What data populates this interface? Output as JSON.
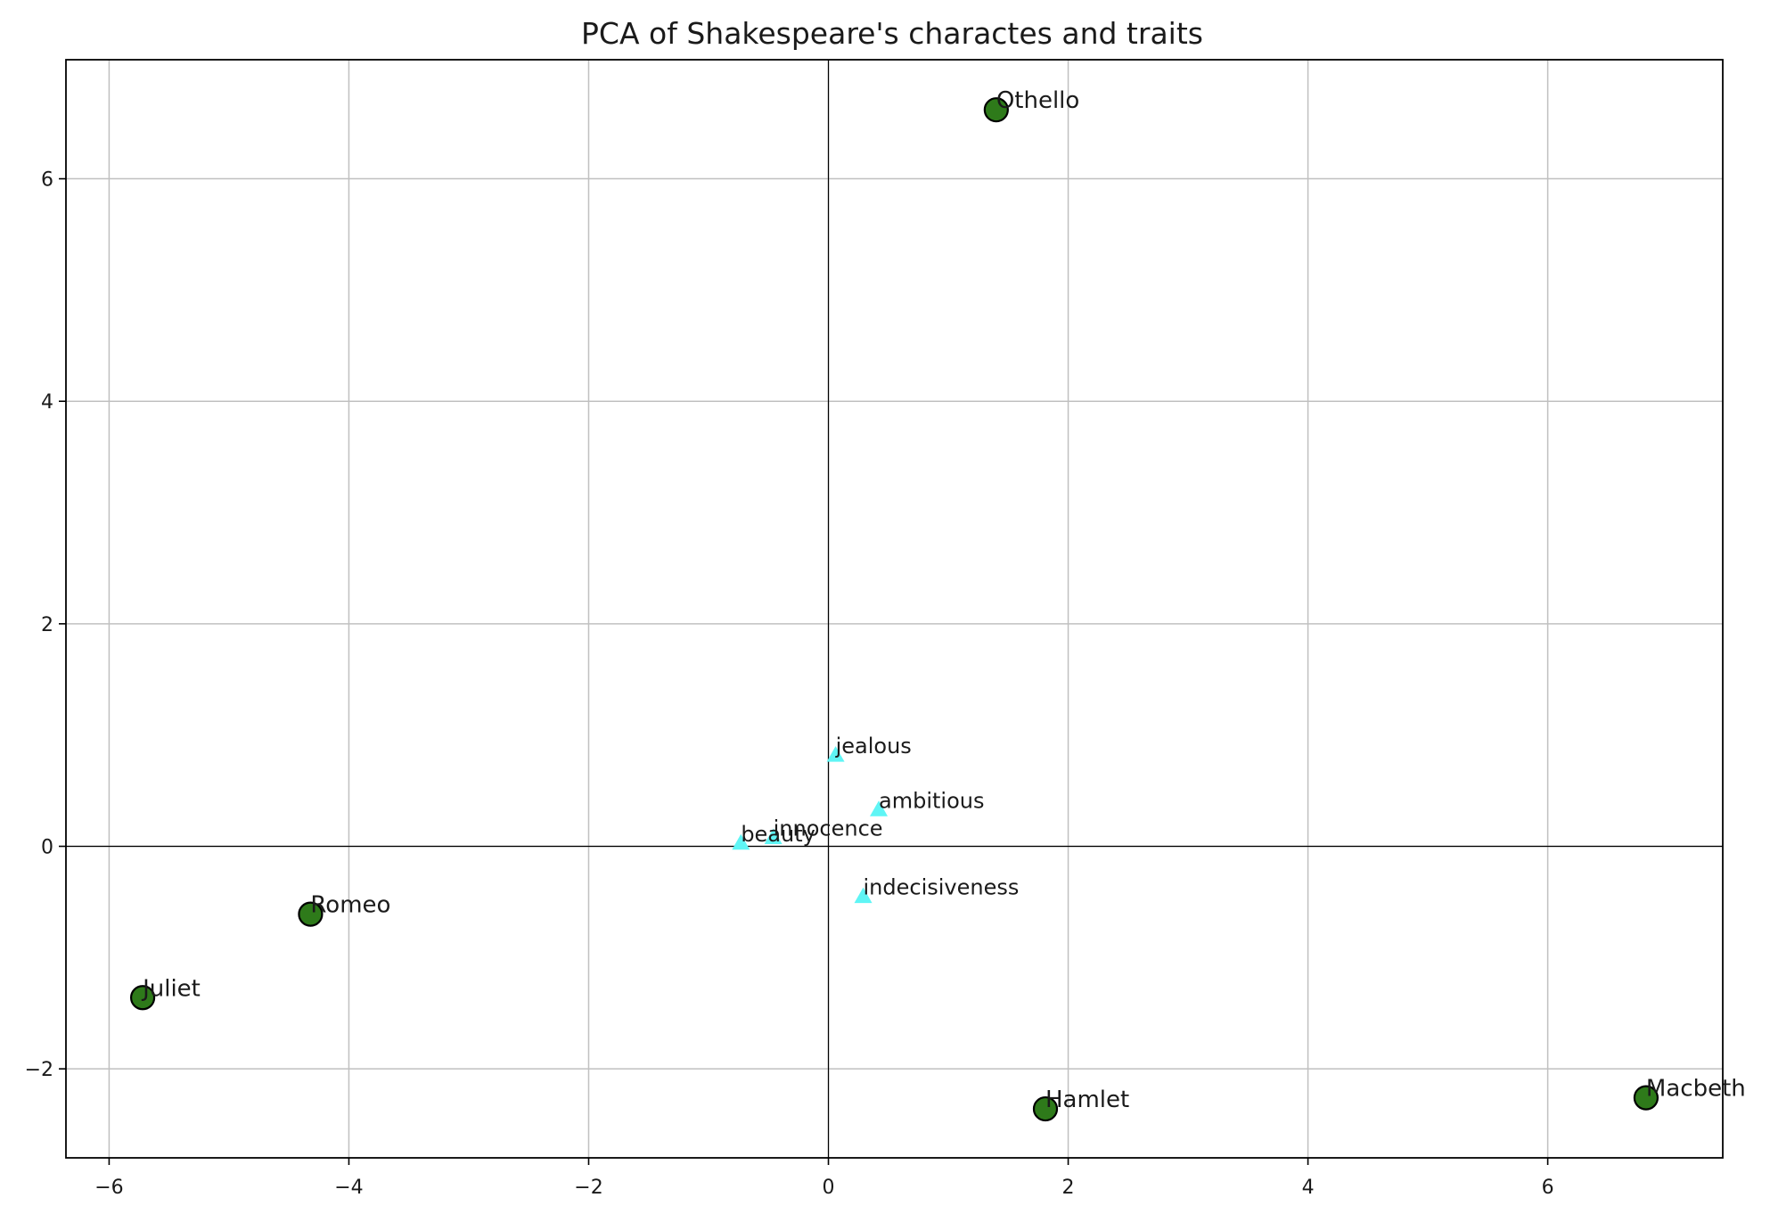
{
  "chart_data": {
    "type": "scatter",
    "title": "PCA of Shakespeare's charactes and traits",
    "xlabel": "",
    "ylabel": "",
    "xlim": [
      -6.36,
      7.46
    ],
    "ylim": [
      -2.8,
      7.07
    ],
    "grid": true,
    "zero_lines": true,
    "x_ticks": [
      -6,
      -4,
      -2,
      0,
      2,
      4,
      6
    ],
    "y_ticks": [
      -2,
      0,
      2,
      4,
      6
    ],
    "x_tick_labels": [
      "−6",
      "−4",
      "−2",
      "0",
      "2",
      "4",
      "6"
    ],
    "y_tick_labels": [
      "−2",
      "0",
      "2",
      "4",
      "6"
    ],
    "characters": {
      "marker": "circle",
      "color": "#2e7a1a",
      "points": [
        {
          "label": "Othello",
          "x": 1.4,
          "y": 6.62
        },
        {
          "label": "Romeo",
          "x": -4.32,
          "y": -0.61
        },
        {
          "label": "Juliet",
          "x": -5.72,
          "y": -1.36
        },
        {
          "label": "Hamlet",
          "x": 1.81,
          "y": -2.36
        },
        {
          "label": "Macbeth",
          "x": 6.82,
          "y": -2.26
        }
      ]
    },
    "traits": {
      "marker": "triangle",
      "color": "#5ff5f5",
      "points": [
        {
          "label": "jealous",
          "x": 0.06,
          "y": 0.82
        },
        {
          "label": "ambitious",
          "x": 0.42,
          "y": 0.33
        },
        {
          "label": "innocence",
          "x": -0.46,
          "y": 0.08
        },
        {
          "label": "beauty",
          "x": -0.73,
          "y": 0.03
        },
        {
          "label": "indecisiveness",
          "x": 0.29,
          "y": -0.45
        }
      ]
    }
  }
}
